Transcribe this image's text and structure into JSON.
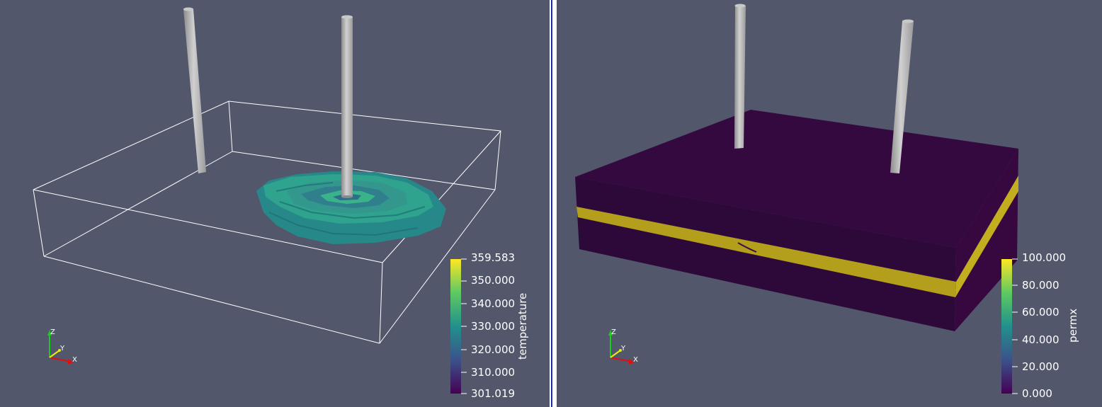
{
  "views": [
    {
      "id": "left",
      "scalar": "temperature",
      "colorbar": {
        "title": "temperature",
        "labels": [
          "359.583",
          "350.000",
          "340.000",
          "330.000",
          "320.000",
          "310.000",
          "301.019"
        ],
        "min": 301.019,
        "max": 359.583
      },
      "axes": {
        "x": "X",
        "y": "Y",
        "z": "Z"
      }
    },
    {
      "id": "right",
      "scalar": "permx",
      "colorbar": {
        "title": "permx",
        "labels": [
          "100.000",
          "80.000",
          "60.000",
          "40.000",
          "20.000",
          "0.000"
        ],
        "min": 0,
        "max": 100
      },
      "axes": {
        "x": "X",
        "y": "Y",
        "z": "Z"
      }
    }
  ],
  "colors": {
    "background": "#52576b",
    "well": "#b3b3b3",
    "outline": "#ffffff",
    "plume": "#2a9a8a",
    "block_top": "#330b40",
    "block_side": "#2d0a3a",
    "layer": "#b5a51d",
    "axis_x": "#e01010",
    "axis_y": "#e8e81a",
    "axis_z": "#18d018"
  }
}
